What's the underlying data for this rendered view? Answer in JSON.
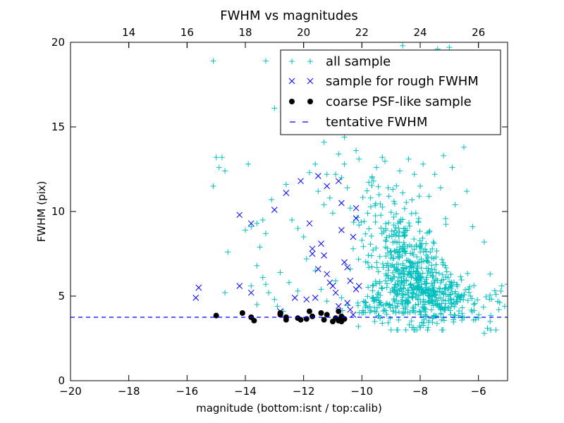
{
  "chart_data": {
    "type": "scatter",
    "title": "FWHM vs magnitudes",
    "xlabel": "magnitude (bottom:isnt / top:calib)",
    "ylabel": "FWHM (pix)",
    "xlim": [
      -20,
      -5
    ],
    "ylim": [
      0,
      20
    ],
    "x_ticks": [
      -20,
      -18,
      -16,
      -14,
      -12,
      -10,
      -8,
      -6
    ],
    "x_tick_labels": [
      "−20",
      "−18",
      "−16",
      "−14",
      "−12",
      "−10",
      "−8",
      "−6"
    ],
    "y_ticks": [
      0,
      5,
      10,
      15,
      20
    ],
    "y_tick_labels": [
      "0",
      "5",
      "10",
      "15",
      "20"
    ],
    "top_axis": {
      "offset": 32.0,
      "ticks": [
        14,
        16,
        18,
        20,
        22,
        24,
        26
      ],
      "tick_labels": [
        "14",
        "16",
        "18",
        "20",
        "22",
        "24",
        "26"
      ]
    },
    "grid": false,
    "legend_position": "top-right",
    "series": [
      {
        "name": "all sample",
        "marker": "plus",
        "color": "#00bfbf",
        "points": [
          [
            -15.1,
            18.9
          ],
          [
            -13.3,
            18.9
          ],
          [
            -13.0,
            16.1
          ],
          [
            -12.3,
            16.3
          ],
          [
            -11.7,
            16.0
          ],
          [
            -11.9,
            18.3
          ],
          [
            -11.0,
            14.8
          ],
          [
            -11.4,
            15.3
          ],
          [
            -11.3,
            14.1
          ],
          [
            -10.6,
            14.4
          ],
          [
            -10.2,
            17.8
          ],
          [
            -10.6,
            17.4
          ],
          [
            -9.8,
            19.2
          ],
          [
            -9.6,
            16.9
          ],
          [
            -8.6,
            19.8
          ],
          [
            -7.4,
            19.6
          ],
          [
            -7.0,
            19.7
          ],
          [
            -7.6,
            18.7
          ],
          [
            -6.8,
            19.0
          ],
          [
            -9.2,
            15.5
          ],
          [
            -8.5,
            15.3
          ],
          [
            -8.0,
            16.6
          ],
          [
            -7.8,
            15.2
          ],
          [
            -7.1,
            16.8
          ],
          [
            -6.6,
            15.8
          ],
          [
            -9.9,
            15.4
          ],
          [
            -8.8,
            17.5
          ],
          [
            -15.1,
            11.5
          ],
          [
            -15.0,
            13.2
          ],
          [
            -14.8,
            13.2
          ],
          [
            -14.9,
            12.6
          ],
          [
            -14.7,
            12.4
          ],
          [
            -13.9,
            12.8
          ],
          [
            -14.7,
            5.2
          ],
          [
            -14.6,
            7.6
          ],
          [
            -14.0,
            8.9
          ],
          [
            -13.8,
            9.1
          ],
          [
            -13.6,
            9.3
          ],
          [
            -13.4,
            9.5
          ],
          [
            -13.3,
            8.7
          ],
          [
            -13.5,
            7.9
          ],
          [
            -13.6,
            6.8
          ],
          [
            -13.4,
            6.1
          ],
          [
            -13.3,
            5.7
          ],
          [
            -13.2,
            5.2
          ],
          [
            -13.0,
            4.8
          ],
          [
            -12.9,
            4.4
          ],
          [
            -12.7,
            4.1
          ],
          [
            -13.8,
            5.6
          ],
          [
            -13.6,
            4.5
          ],
          [
            -13.1,
            10.7
          ],
          [
            -12.6,
            11.6
          ],
          [
            -12.4,
            9.5
          ],
          [
            -12.2,
            9.0
          ],
          [
            -12.0,
            8.5
          ],
          [
            -11.8,
            12.3
          ],
          [
            -11.6,
            12.8
          ],
          [
            -11.5,
            11.2
          ],
          [
            -11.3,
            10.4
          ],
          [
            -11.1,
            10.8
          ],
          [
            -11.0,
            9.9
          ],
          [
            -10.9,
            12.2
          ],
          [
            -10.8,
            13.4
          ],
          [
            -10.7,
            12.0
          ],
          [
            -10.5,
            11.4
          ],
          [
            -10.4,
            10.2
          ],
          [
            -10.2,
            13.6
          ],
          [
            -10.1,
            13.1
          ],
          [
            -11.2,
            12.2
          ],
          [
            -10.6,
            12.8
          ],
          [
            -12.8,
            6.4
          ],
          [
            -12.5,
            5.8
          ],
          [
            -12.2,
            5.3
          ],
          [
            -11.9,
            7.2
          ],
          [
            -11.6,
            6.5
          ],
          [
            -11.4,
            5.4
          ],
          [
            -11.2,
            4.7
          ],
          [
            -10.9,
            5.9
          ],
          [
            -10.7,
            4.9
          ],
          [
            -10.4,
            6.6
          ],
          [
            -10.3,
            7.8
          ],
          [
            -10.1,
            9.2
          ],
          [
            -10.0,
            8.3
          ],
          [
            -9.8,
            9.9
          ],
          [
            -9.7,
            10.8
          ],
          [
            -9.6,
            11.8
          ],
          [
            -9.5,
            12.6
          ],
          [
            -9.3,
            13.2
          ],
          [
            -9.1,
            11.4
          ],
          [
            -8.9,
            10.6
          ],
          [
            -8.7,
            12.4
          ],
          [
            -8.6,
            11.1
          ],
          [
            -8.4,
            13.1
          ],
          [
            -8.2,
            12.2
          ],
          [
            -8.0,
            11.5
          ],
          [
            -7.9,
            12.8
          ],
          [
            -7.7,
            10.9
          ],
          [
            -7.5,
            12.2
          ],
          [
            -7.3,
            11.4
          ],
          [
            -7.2,
            13.3
          ],
          [
            -6.9,
            12.6
          ],
          [
            -6.5,
            13.8
          ],
          [
            -6.4,
            11.2
          ],
          [
            -6.8,
            10.4
          ],
          [
            -6.2,
            9.1
          ],
          [
            -5.8,
            8.2
          ],
          [
            -5.6,
            6.3
          ],
          [
            -5.4,
            5.1
          ],
          [
            -5.2,
            5.6
          ],
          [
            -5.0,
            5.7
          ],
          [
            -5.3,
            4.2
          ],
          [
            -5.6,
            3.5
          ],
          [
            -5.8,
            2.8
          ],
          [
            -5.4,
            3.0
          ],
          [
            -5.1,
            4.4
          ]
        ],
        "clusters": [
          {
            "center": [
              -8.4,
              6.6
            ],
            "spread": [
              0.55,
              1.5
            ],
            "count": 300,
            "seed": 11
          },
          {
            "center": [
              -7.8,
              5.0
            ],
            "spread": [
              0.65,
              0.9
            ],
            "count": 230,
            "seed": 23
          },
          {
            "center": [
              -9.1,
              8.6
            ],
            "spread": [
              0.5,
              1.8
            ],
            "count": 90,
            "seed": 37
          },
          {
            "center": [
              -6.6,
              4.5
            ],
            "spread": [
              0.8,
              0.6
            ],
            "count": 90,
            "seed": 41
          },
          {
            "center": [
              -9.6,
              4.4
            ],
            "spread": [
              0.4,
              0.5
            ],
            "count": 50,
            "seed": 53
          }
        ]
      },
      {
        "name": "sample for rough FWHM",
        "marker": "x",
        "color": "#0000ff",
        "points": [
          [
            -15.7,
            4.9
          ],
          [
            -15.6,
            5.5
          ],
          [
            -14.2,
            5.6
          ],
          [
            -14.2,
            9.8
          ],
          [
            -13.8,
            9.3
          ],
          [
            -13.8,
            5.2
          ],
          [
            -13.0,
            10.1
          ],
          [
            -12.6,
            11.1
          ],
          [
            -12.3,
            4.9
          ],
          [
            -12.1,
            11.8
          ],
          [
            -11.8,
            9.3
          ],
          [
            -11.7,
            7.8
          ],
          [
            -11.7,
            7.5
          ],
          [
            -11.6,
            4.9
          ],
          [
            -11.5,
            6.6
          ],
          [
            -11.4,
            8.1
          ],
          [
            -11.2,
            6.3
          ],
          [
            -11.0,
            5.6
          ],
          [
            -10.8,
            11.8
          ],
          [
            -10.7,
            10.5
          ],
          [
            -10.7,
            8.9
          ],
          [
            -10.6,
            7.0
          ],
          [
            -10.5,
            6.7
          ],
          [
            -10.4,
            5.9
          ],
          [
            -10.3,
            8.5
          ],
          [
            -10.2,
            10.2
          ],
          [
            -10.2,
            9.6
          ],
          [
            -10.2,
            5.4
          ],
          [
            -10.4,
            4.2
          ],
          [
            -10.3,
            3.9
          ],
          [
            -11.2,
            11.5
          ],
          [
            -11.5,
            12.1
          ],
          [
            -11.1,
            5.8
          ],
          [
            -11.3,
            7.4
          ],
          [
            -10.8,
            4.4
          ],
          [
            -10.9,
            5.2
          ],
          [
            -11.9,
            4.8
          ],
          [
            -12.8,
            4.1
          ],
          [
            -10.1,
            5.6
          ],
          [
            -10.5,
            4.6
          ]
        ]
      },
      {
        "name": "coarse PSF-like sample",
        "marker": "dot",
        "color": "#000000",
        "points": [
          [
            -15.0,
            3.85
          ],
          [
            -14.1,
            4.0
          ],
          [
            -13.8,
            3.75
          ],
          [
            -13.7,
            3.55
          ],
          [
            -12.8,
            3.9
          ],
          [
            -12.8,
            4.0
          ],
          [
            -12.6,
            3.75
          ],
          [
            -12.6,
            3.6
          ],
          [
            -12.2,
            3.7
          ],
          [
            -12.1,
            3.6
          ],
          [
            -11.9,
            3.65
          ],
          [
            -11.8,
            4.1
          ],
          [
            -11.7,
            3.8
          ],
          [
            -11.4,
            4.0
          ],
          [
            -11.3,
            3.6
          ],
          [
            -11.2,
            3.9
          ],
          [
            -11.0,
            3.5
          ],
          [
            -10.9,
            3.7
          ],
          [
            -10.8,
            4.1
          ],
          [
            -10.8,
            3.55
          ],
          [
            -10.7,
            3.8
          ],
          [
            -10.6,
            3.65
          ],
          [
            -10.7,
            3.5
          ],
          [
            -10.8,
            3.6
          ]
        ]
      },
      {
        "name": "tentative FWHM",
        "marker": "dashed-line",
        "color": "#0000ff",
        "y": 3.75
      }
    ]
  }
}
